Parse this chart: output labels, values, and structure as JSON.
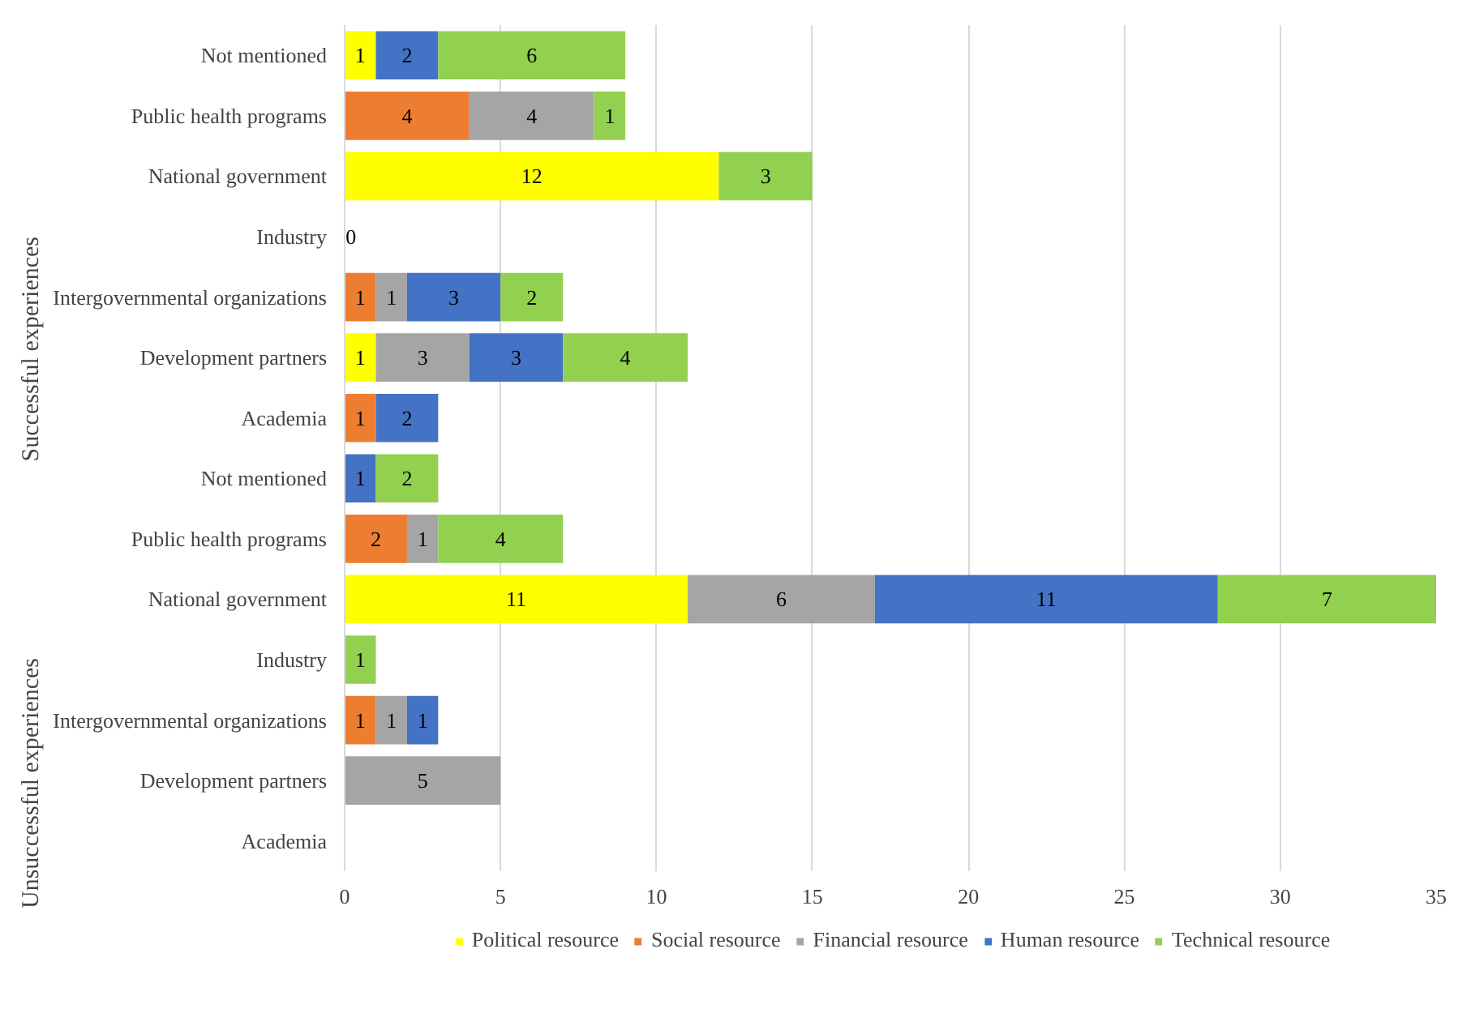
{
  "chart_data": {
    "type": "bar",
    "orientation": "horizontal",
    "stacked": true,
    "categories": [
      "Not mentioned",
      "Public health programs",
      "National government",
      "Industry",
      "Intergovernmental organizations",
      "Development partners",
      "Academia",
      "Not mentioned",
      "Public health programs",
      "National government",
      "Industry",
      "Intergovernmental organizations",
      "Development partners",
      "Academia"
    ],
    "series": [
      {
        "name": "Political resource",
        "color": "#ffff00",
        "values": [
          1,
          null,
          12,
          0,
          null,
          1,
          null,
          null,
          null,
          11,
          null,
          null,
          null,
          null
        ]
      },
      {
        "name": "Social resource",
        "color": "#ed7d31",
        "values": [
          null,
          4,
          null,
          null,
          1,
          null,
          1,
          null,
          2,
          null,
          null,
          1,
          null,
          null
        ]
      },
      {
        "name": "Financial resource",
        "color": "#a5a5a5",
        "values": [
          null,
          4,
          null,
          null,
          1,
          3,
          null,
          null,
          1,
          6,
          null,
          1,
          5,
          null
        ]
      },
      {
        "name": "Human resource",
        "color": "#4472c4",
        "values": [
          2,
          null,
          null,
          null,
          3,
          3,
          2,
          1,
          null,
          11,
          null,
          1,
          null,
          null
        ]
      },
      {
        "name": "Technical resource",
        "color": "#92d050",
        "values": [
          6,
          1,
          3,
          null,
          2,
          4,
          null,
          2,
          4,
          7,
          1,
          null,
          null,
          null
        ]
      }
    ],
    "annotations": [
      "Successful experiences",
      "Unsuccessful experiences"
    ],
    "xlim": [
      0,
      35
    ],
    "xticks": [
      0,
      5,
      10,
      15,
      20,
      25,
      30,
      35
    ],
    "data_labels": true,
    "grid": "x",
    "legend": "bottom"
  }
}
